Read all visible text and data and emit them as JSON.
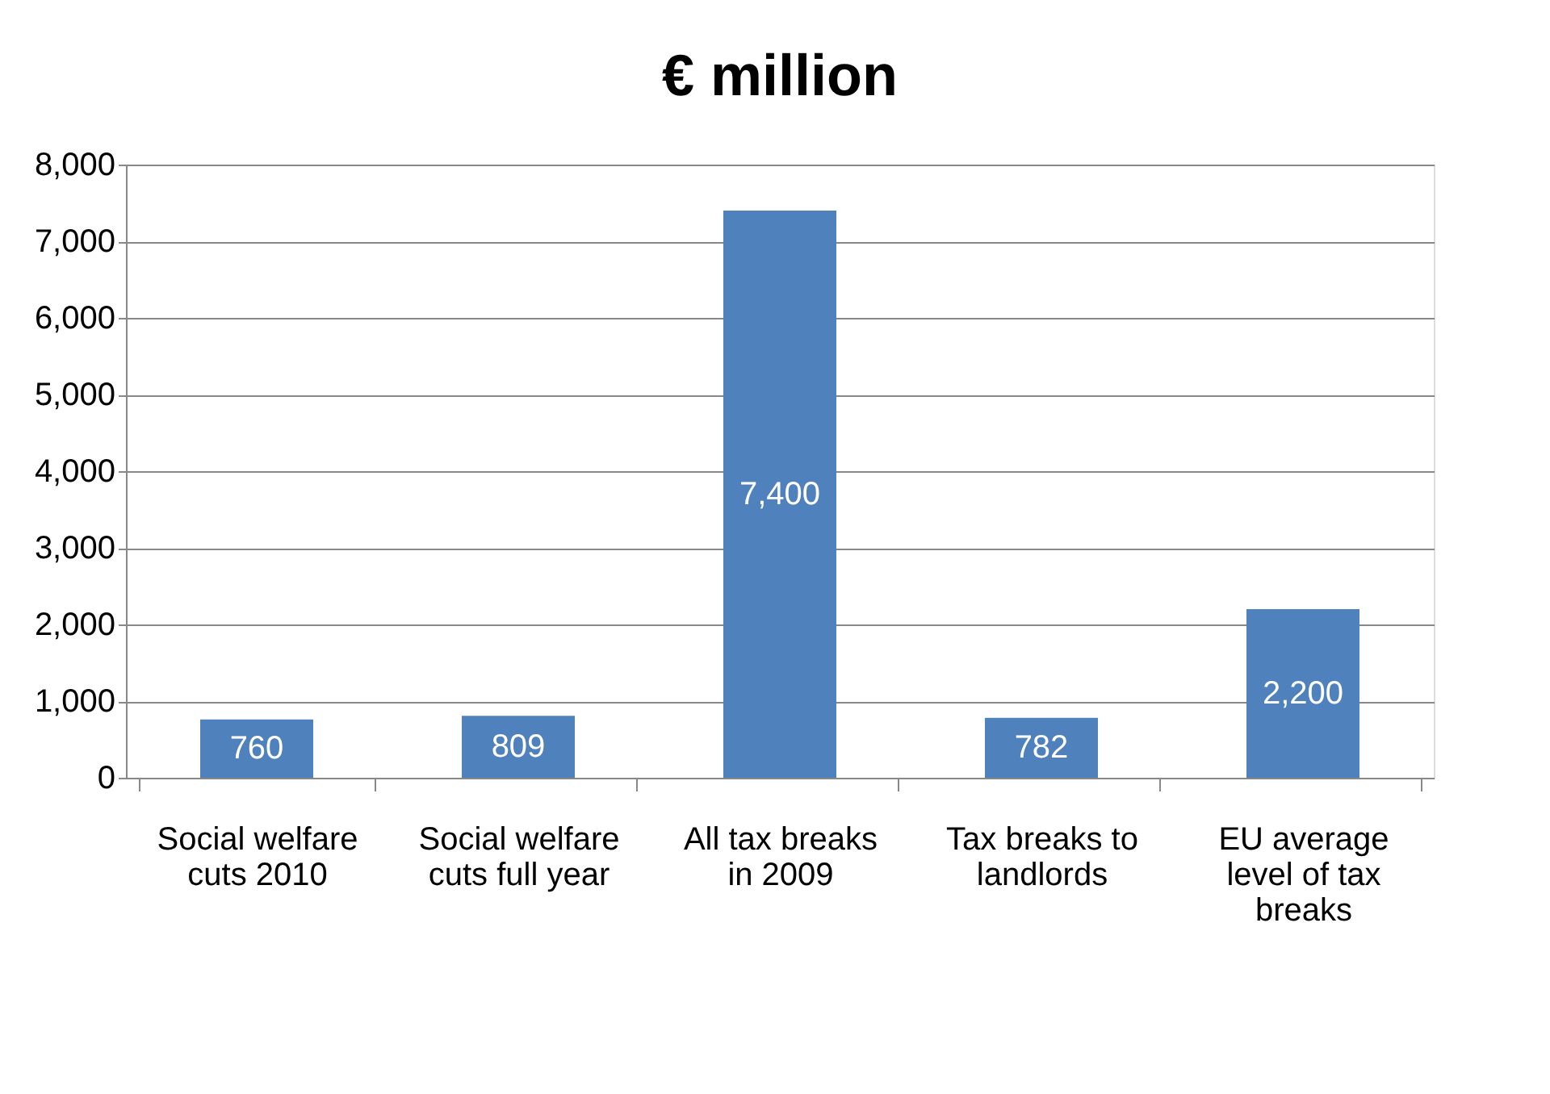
{
  "chart_data": {
    "type": "bar",
    "title": "€ million",
    "categories": [
      "Social welfare cuts 2010",
      "Social welfare cuts full year",
      "All tax breaks in 2009",
      "Tax breaks to landlords",
      "EU average level of tax breaks"
    ],
    "values": [
      760,
      809,
      7400,
      782,
      2200
    ],
    "color": "#4f81bd",
    "ylim": [
      0,
      8000
    ],
    "yticks": [
      {
        "value": 0,
        "label": "0"
      },
      {
        "value": 1000,
        "label": "1,000"
      },
      {
        "value": 2000,
        "label": "2,000"
      },
      {
        "value": 3000,
        "label": "3,000"
      },
      {
        "value": 4000,
        "label": "4,000"
      },
      {
        "value": 5000,
        "label": "5,000"
      },
      {
        "value": 6000,
        "label": "6,000"
      },
      {
        "value": 7000,
        "label": "7,000"
      },
      {
        "value": 8000,
        "label": "8,000"
      }
    ],
    "grid": "y",
    "value_labels": [
      "760",
      "809",
      "7,400",
      "782",
      "2,200"
    ]
  }
}
